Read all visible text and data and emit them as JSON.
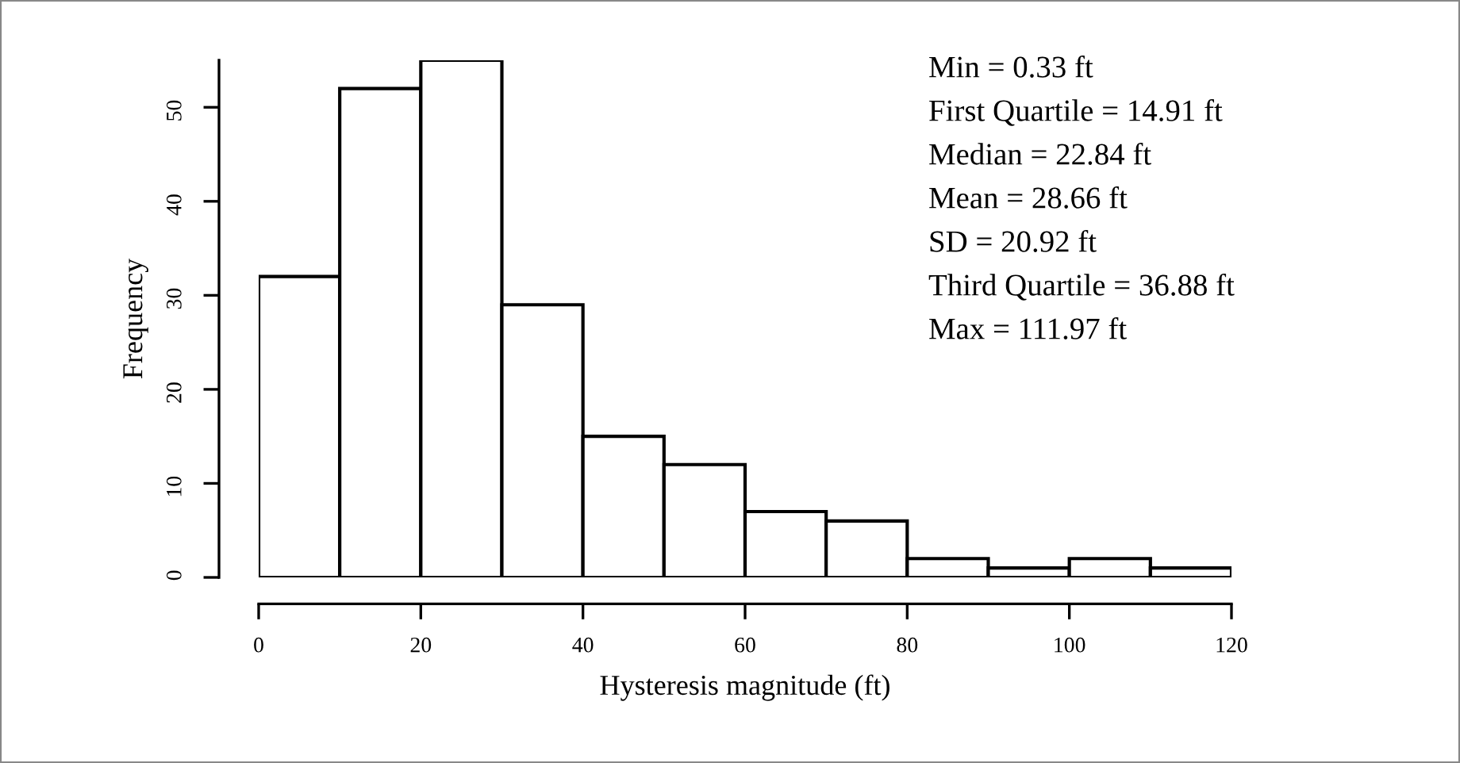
{
  "chart_data": {
    "type": "histogram",
    "xlabel": "Hysteresis magnitude (ft)",
    "ylabel": "Frequency",
    "bins": [
      0,
      10,
      20,
      30,
      40,
      50,
      60,
      70,
      80,
      90,
      100,
      110,
      120
    ],
    "values": [
      32,
      52,
      55,
      29,
      15,
      12,
      7,
      6,
      2,
      1,
      2,
      1
    ],
    "color": "#ffffff",
    "xlim": [
      0,
      120
    ],
    "ylim": [
      0,
      55
    ],
    "xticks": [
      0,
      20,
      40,
      60,
      80,
      100,
      120
    ],
    "yticks": [
      0,
      10,
      20,
      30,
      40,
      50
    ],
    "grid": false,
    "legend": false,
    "annotations": [
      "Min = 0.33 ft",
      "First Quartile = 14.91 ft",
      "Median = 22.84 ft",
      "Mean = 28.66 ft",
      "SD = 20.92 ft",
      "Third Quartile = 36.88 ft",
      "Max = 111.97 ft"
    ]
  }
}
